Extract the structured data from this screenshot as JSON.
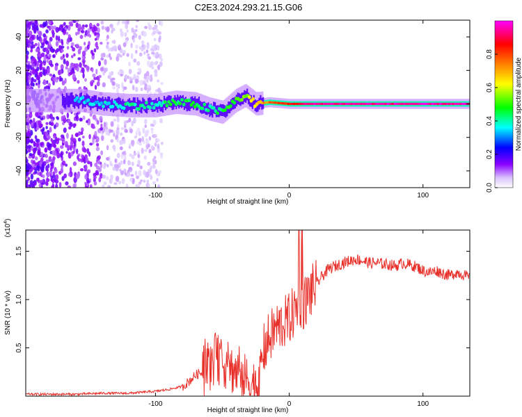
{
  "title": "C2E3.2024.293.21.15.G06",
  "chart_data": [
    {
      "type": "heatmap",
      "title": "C2E3.2024.293.21.15.G06",
      "xlabel": "Height of straight line (km)",
      "ylabel": "Frequency (Hz)",
      "xlim": [
        -197,
        135
      ],
      "ylim": [
        -50,
        50
      ],
      "x_ticks": [
        -100,
        0,
        100
      ],
      "y_ticks": [
        -40,
        -20,
        0,
        20,
        40
      ],
      "colorbar": {
        "label": "Normalized spectral amplitude",
        "range": [
          0,
          1
        ],
        "ticks": [
          "0.0",
          "0.2",
          "0.4",
          "0.6",
          "0.8"
        ],
        "colors": [
          "#ffffff",
          "#8b00ff",
          "#0000ff",
          "#00ffff",
          "#00ff00",
          "#ffff00",
          "#ff8000",
          "#ff0000",
          "#ff00ff"
        ]
      },
      "ridge": {
        "description": "dominant spectral ridge near 0 Hz",
        "x": [
          -155,
          -140,
          -120,
          -100,
          -85,
          -70,
          -60,
          -50,
          -40,
          -33,
          -25,
          -15,
          0,
          20,
          50,
          80,
          100,
          135
        ],
        "frequency_hz": [
          2,
          0,
          -1,
          -1,
          1,
          0,
          -3,
          -5,
          2,
          5,
          0,
          1,
          0,
          0,
          0,
          0,
          0,
          0
        ],
        "amplitude": [
          0.35,
          0.35,
          0.4,
          0.4,
          0.45,
          0.45,
          0.4,
          0.45,
          0.5,
          0.55,
          0.65,
          0.75,
          0.85,
          0.95,
          0.95,
          0.95,
          0.95,
          0.95
        ]
      },
      "noise_extent_x": [
        -197,
        -95
      ]
    },
    {
      "type": "line",
      "xlabel": "Height of straight line (km)",
      "ylabel": "SNR (10 * v/v)",
      "y_scale_label": "(x10",
      "y_scale_exp": "4",
      "y_scale_suffix": ")",
      "xlim": [
        -197,
        135
      ],
      "ylim": [
        0,
        1.72
      ],
      "x_ticks": [
        -100,
        0,
        100
      ],
      "y_ticks": [
        "0.5",
        "1.0",
        "1.5"
      ],
      "y_tick_values": [
        0.5,
        1.0,
        1.5
      ],
      "series": [
        {
          "name": "SNR",
          "color": "#e8302a",
          "x": [
            -197,
            -180,
            -160,
            -140,
            -120,
            -100,
            -90,
            -80,
            -75,
            -70,
            -65,
            -60,
            -55,
            -50,
            -45,
            -40,
            -35,
            -30,
            -25,
            -22,
            -20,
            -15,
            -10,
            -5,
            0,
            5,
            8,
            10,
            15,
            20,
            25,
            30,
            35,
            40,
            45,
            50,
            55,
            60,
            65,
            70,
            75,
            80,
            85,
            90,
            95,
            100,
            105,
            110,
            115,
            120,
            125,
            130,
            135
          ],
          "values": [
            0.02,
            0.02,
            0.02,
            0.03,
            0.03,
            0.05,
            0.07,
            0.1,
            0.15,
            0.22,
            0.25,
            0.3,
            0.4,
            0.35,
            0.3,
            0.25,
            0.2,
            0.15,
            0.12,
            0.1,
            0.45,
            0.6,
            0.7,
            0.75,
            0.8,
            0.9,
            1.0,
            0.95,
            1.05,
            1.15,
            1.25,
            1.32,
            1.35,
            1.38,
            1.4,
            1.42,
            1.4,
            1.38,
            1.38,
            1.37,
            1.36,
            1.35,
            1.38,
            1.36,
            1.34,
            1.3,
            1.28,
            1.3,
            1.27,
            1.25,
            1.28,
            1.26,
            1.22
          ]
        }
      ]
    }
  ]
}
